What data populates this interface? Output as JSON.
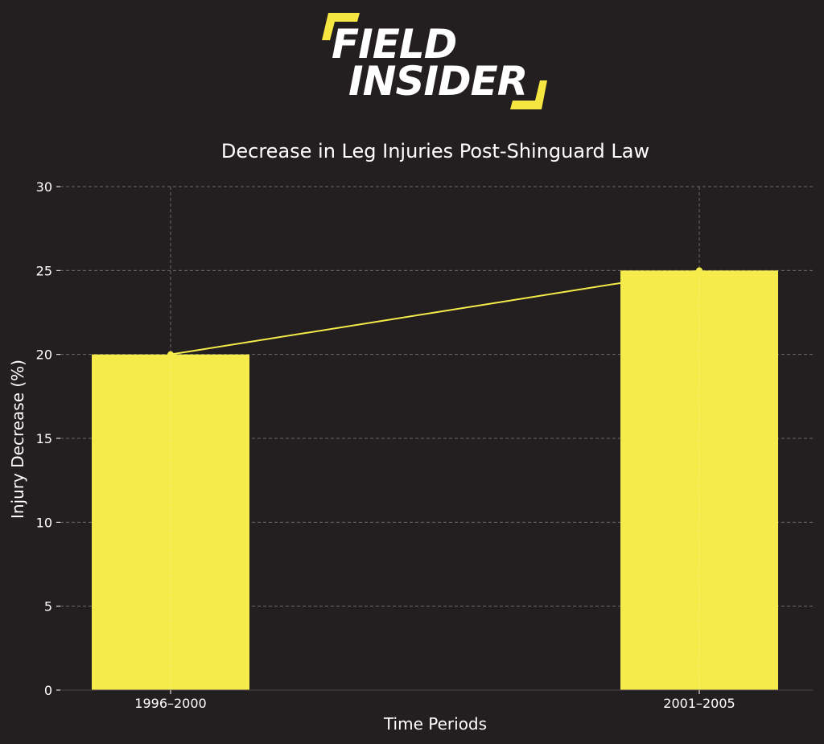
{
  "logo": {
    "line1": "FIELD",
    "line2": "INSIDER",
    "accent_color": "#f5e642"
  },
  "chart_data": {
    "type": "bar",
    "title": "Decrease in Leg Injuries Post-Shinguard Law",
    "xlabel": "Time Periods",
    "ylabel": "Injury Decrease (%)",
    "categories": [
      "1996–2000",
      "2001–2005"
    ],
    "values": [
      20,
      25
    ],
    "overlay_line": true,
    "ylim": [
      0,
      30
    ],
    "yticks": [
      0,
      5,
      10,
      15,
      20,
      25,
      30
    ],
    "grid": true,
    "bar_color": "#f5ec4b",
    "line_color": "#f5ec4b",
    "background_color": "#231f20"
  }
}
